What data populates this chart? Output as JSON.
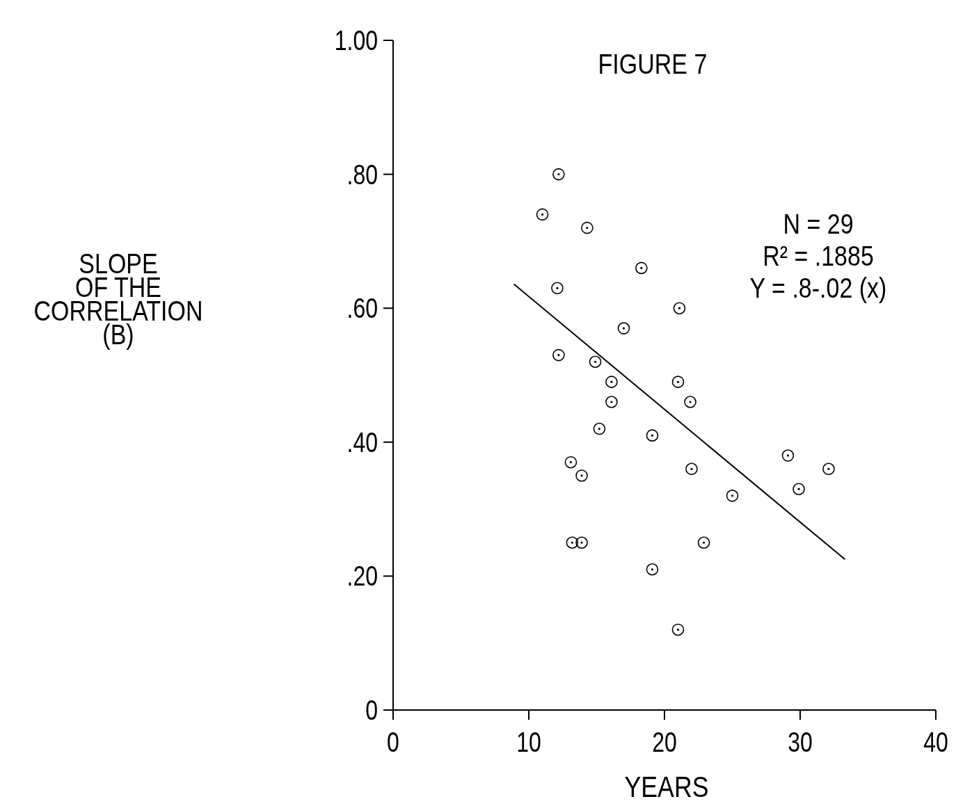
{
  "chart_data": {
    "type": "scatter",
    "title": "FIGURE 7",
    "xlabel": "YEARS",
    "ylabel": "SLOPE\nOF THE\nCORRELATION\n(B)",
    "annotations": [
      "N = 29",
      "R² = .1885",
      "Y = .8-.02 (x)"
    ],
    "xlim": [
      0,
      40
    ],
    "xticks": [
      0,
      10,
      20,
      30,
      40
    ],
    "ylim": [
      0,
      1
    ],
    "yticks": [
      {
        "value": 0,
        "label": "0"
      },
      {
        "value": 0.2,
        "label": ".20"
      },
      {
        "value": 0.4,
        "label": ".40"
      },
      {
        "value": 0.6,
        "label": ".60"
      },
      {
        "value": 0.8,
        "label": ".80"
      },
      {
        "value": 1,
        "label": "1.00"
      }
    ],
    "grid": false,
    "series": [
      {
        "marker": "circle",
        "color": "#000000",
        "x": [
          12.2,
          11.0,
          14.3,
          18.3,
          12.1,
          21.1,
          17.0,
          12.2,
          14.9,
          16.1,
          21.0,
          21.9,
          16.1,
          15.2,
          19.1,
          13.1,
          13.9,
          22.0,
          29.1,
          29.9,
          32.1,
          25.0,
          13.2,
          13.9,
          22.9,
          19.1,
          21.0
        ],
        "values": [
          0.8,
          0.74,
          0.72,
          0.66,
          0.63,
          0.6,
          0.57,
          0.53,
          0.52,
          0.49,
          0.49,
          0.46,
          0.46,
          0.42,
          0.41,
          0.37,
          0.35,
          0.36,
          0.38,
          0.33,
          0.36,
          0.32,
          0.25,
          0.25,
          0.25,
          0.21,
          0.12
        ]
      },
      {
        "type": "line",
        "marker": "none",
        "color": "#000000",
        "x": [
          8.9,
          33.3
        ],
        "values": [
          0.636,
          0.225
        ]
      }
    ]
  }
}
